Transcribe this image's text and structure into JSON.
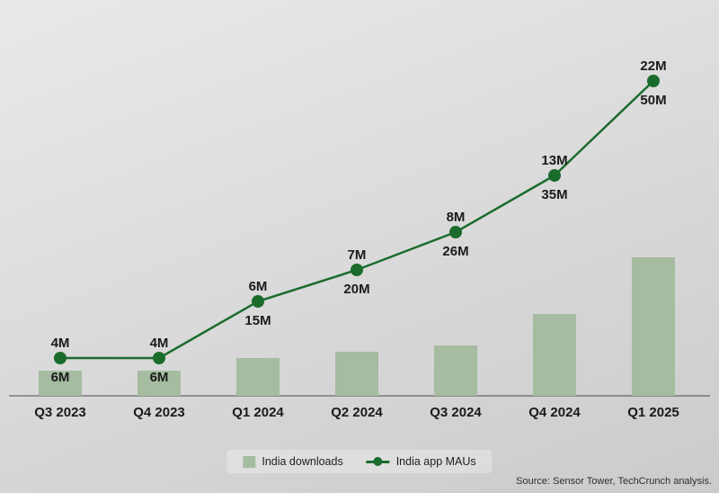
{
  "chart_data": {
    "type": "combo",
    "categories": [
      "Q3 2023",
      "Q4 2023",
      "Q1 2024",
      "Q2 2024",
      "Q3 2024",
      "Q4 2024",
      "Q1 2025"
    ],
    "unit": "M",
    "series": [
      {
        "name": "India downloads",
        "type": "bar",
        "values": [
          4,
          4,
          6,
          7,
          8,
          13,
          22
        ],
        "labels": [
          "4M",
          "4M",
          "6M",
          "7M",
          "8M",
          "13M",
          "22M"
        ],
        "color": "#a5bca1"
      },
      {
        "name": "India app MAUs",
        "type": "line",
        "values": [
          6,
          6,
          15,
          20,
          26,
          35,
          50
        ],
        "labels": [
          "6M",
          "6M",
          "15M",
          "20M",
          "26M",
          "35M",
          "50M"
        ],
        "color": "#1b6b2d"
      }
    ],
    "ylim": [
      0,
      55
    ],
    "grid": false,
    "legend_position": "bottom",
    "axis_color": "#4a4a4a",
    "text_color": "#1a1a1a"
  },
  "source_note": "Source: Sensor Tower, TechCrunch analysis."
}
